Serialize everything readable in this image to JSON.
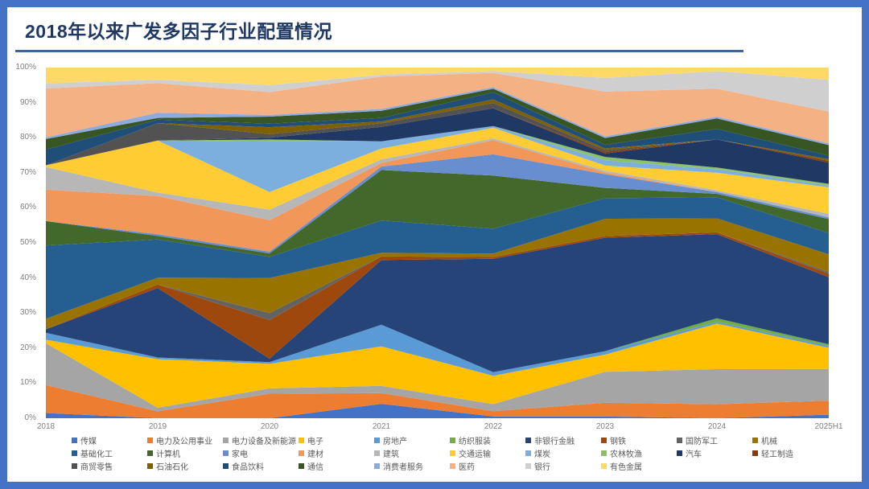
{
  "page": {
    "title": "2018年以来广发多因子行业配置情况",
    "frame_color": "#4472C4",
    "title_color": "#1F3864",
    "rule_color": "#3E6598"
  },
  "chart_data": {
    "type": "area",
    "stacked": true,
    "normalized_percent": true,
    "title": "2018年以来广发多因子行业配置情况",
    "xlabel": "",
    "ylabel": "",
    "ylim": [
      0,
      100
    ],
    "grid": false,
    "legend_position": "bottom",
    "x": [
      "2018",
      "2019",
      "2020",
      "2021",
      "2022",
      "2023",
      "2024",
      "2025H1"
    ],
    "y_tick_labels": [
      "0%",
      "10%",
      "20%",
      "30%",
      "40%",
      "50%",
      "60%",
      "70%",
      "80%",
      "90%",
      "100%"
    ],
    "series": [
      {
        "name": "传媒",
        "color": "#4472C4",
        "values": [
          1.5,
          0,
          0,
          4,
          0.5,
          0.5,
          0,
          1
        ]
      },
      {
        "name": "电力及公用事业",
        "color": "#ED7D31",
        "values": [
          8,
          2,
          7,
          3,
          1.5,
          4,
          4,
          4
        ]
      },
      {
        "name": "电力设备及新能源",
        "color": "#A5A5A5",
        "values": [
          12,
          1,
          1.5,
          2,
          2,
          9,
          10,
          9
        ]
      },
      {
        "name": "电子",
        "color": "#FFC000",
        "values": [
          1,
          14,
          7,
          11,
          8,
          5,
          13,
          6
        ]
      },
      {
        "name": "房地产",
        "color": "#5B9BD5",
        "values": [
          2,
          0.5,
          0.5,
          6,
          1,
          1,
          0.5,
          0.5
        ]
      },
      {
        "name": "纺织服装",
        "color": "#70AD47",
        "values": [
          0,
          0,
          0,
          0,
          0,
          0,
          1,
          0.5
        ]
      },
      {
        "name": "非银行金融",
        "color": "#264478",
        "values": [
          1,
          20,
          1,
          18,
          32,
          33,
          24,
          19
        ]
      },
      {
        "name": "钢铁",
        "color": "#9E480E",
        "values": [
          0,
          1,
          11,
          1,
          0.5,
          0.5,
          0.5,
          1
        ]
      },
      {
        "name": "国防军工",
        "color": "#636363",
        "values": [
          0,
          0,
          2,
          0,
          0,
          0,
          0,
          0.5
        ]
      },
      {
        "name": "机械",
        "color": "#997300",
        "values": [
          3,
          2,
          10,
          1,
          1,
          5,
          4,
          5
        ]
      },
      {
        "name": "基础化工",
        "color": "#255E91",
        "values": [
          21,
          11,
          6,
          9,
          7,
          6,
          6,
          6
        ]
      },
      {
        "name": "计算机",
        "color": "#43682B",
        "values": [
          7,
          1,
          1,
          14,
          15,
          3,
          1,
          4
        ]
      },
      {
        "name": "家电",
        "color": "#698ED0",
        "values": [
          0,
          0.5,
          0.5,
          1,
          6,
          4,
          0.5,
          0.5
        ]
      },
      {
        "name": "建材",
        "color": "#F1975A",
        "values": [
          9,
          11,
          9,
          1,
          4,
          0.5,
          0,
          0
        ]
      },
      {
        "name": "建筑",
        "color": "#B7B7B7",
        "values": [
          6.5,
          1,
          3,
          1,
          0.5,
          0.5,
          0.5,
          1
        ]
      },
      {
        "name": "交通运输",
        "color": "#FFCD33",
        "values": [
          0.5,
          15,
          5,
          3,
          3,
          1.5,
          5,
          7.5
        ]
      },
      {
        "name": "煤炭",
        "color": "#7CAFDD",
        "values": [
          0,
          0,
          14.5,
          2,
          0.5,
          1.5,
          1,
          0.5
        ]
      },
      {
        "name": "农林牧渔",
        "color": "#8CC168",
        "values": [
          0,
          0,
          0.5,
          0,
          0,
          1,
          0.5,
          0.5
        ]
      },
      {
        "name": "汽车",
        "color": "#203864",
        "values": [
          0,
          0,
          0.5,
          4,
          5,
          1,
          8,
          6
        ]
      },
      {
        "name": "轻工制造",
        "color": "#843C0C",
        "values": [
          0,
          0,
          0,
          0,
          0,
          0.5,
          0,
          0.5
        ]
      },
      {
        "name": "商贸零售",
        "color": "#525252",
        "values": [
          0,
          5,
          1,
          1,
          1.5,
          0.5,
          0,
          0
        ]
      },
      {
        "name": "石油石化",
        "color": "#7F6000",
        "values": [
          0,
          0,
          2,
          0.5,
          1,
          0.5,
          0,
          0.5
        ]
      },
      {
        "name": "食品饮料",
        "color": "#1F4E79",
        "values": [
          4.5,
          1,
          1,
          1,
          2,
          1,
          3,
          1
        ]
      },
      {
        "name": "通信",
        "color": "#375623",
        "values": [
          3,
          0.5,
          2,
          2,
          1,
          2,
          3,
          3
        ]
      },
      {
        "name": "消费者服务",
        "color": "#8FAADC",
        "values": [
          0.5,
          1.5,
          0.5,
          0.5,
          0.5,
          0.5,
          0.5,
          0.5
        ]
      },
      {
        "name": "医药",
        "color": "#F4B183",
        "values": [
          14,
          8.5,
          6.5,
          9,
          4,
          13,
          8,
          9
        ]
      },
      {
        "name": "银行",
        "color": "#CFCFCF",
        "values": [
          1.5,
          1,
          2,
          0.5,
          0.5,
          4,
          5,
          9
        ]
      },
      {
        "name": "有色金属",
        "color": "#FFD966",
        "values": [
          4.5,
          3.5,
          5,
          2,
          1,
          3,
          1,
          3.5
        ]
      }
    ]
  }
}
